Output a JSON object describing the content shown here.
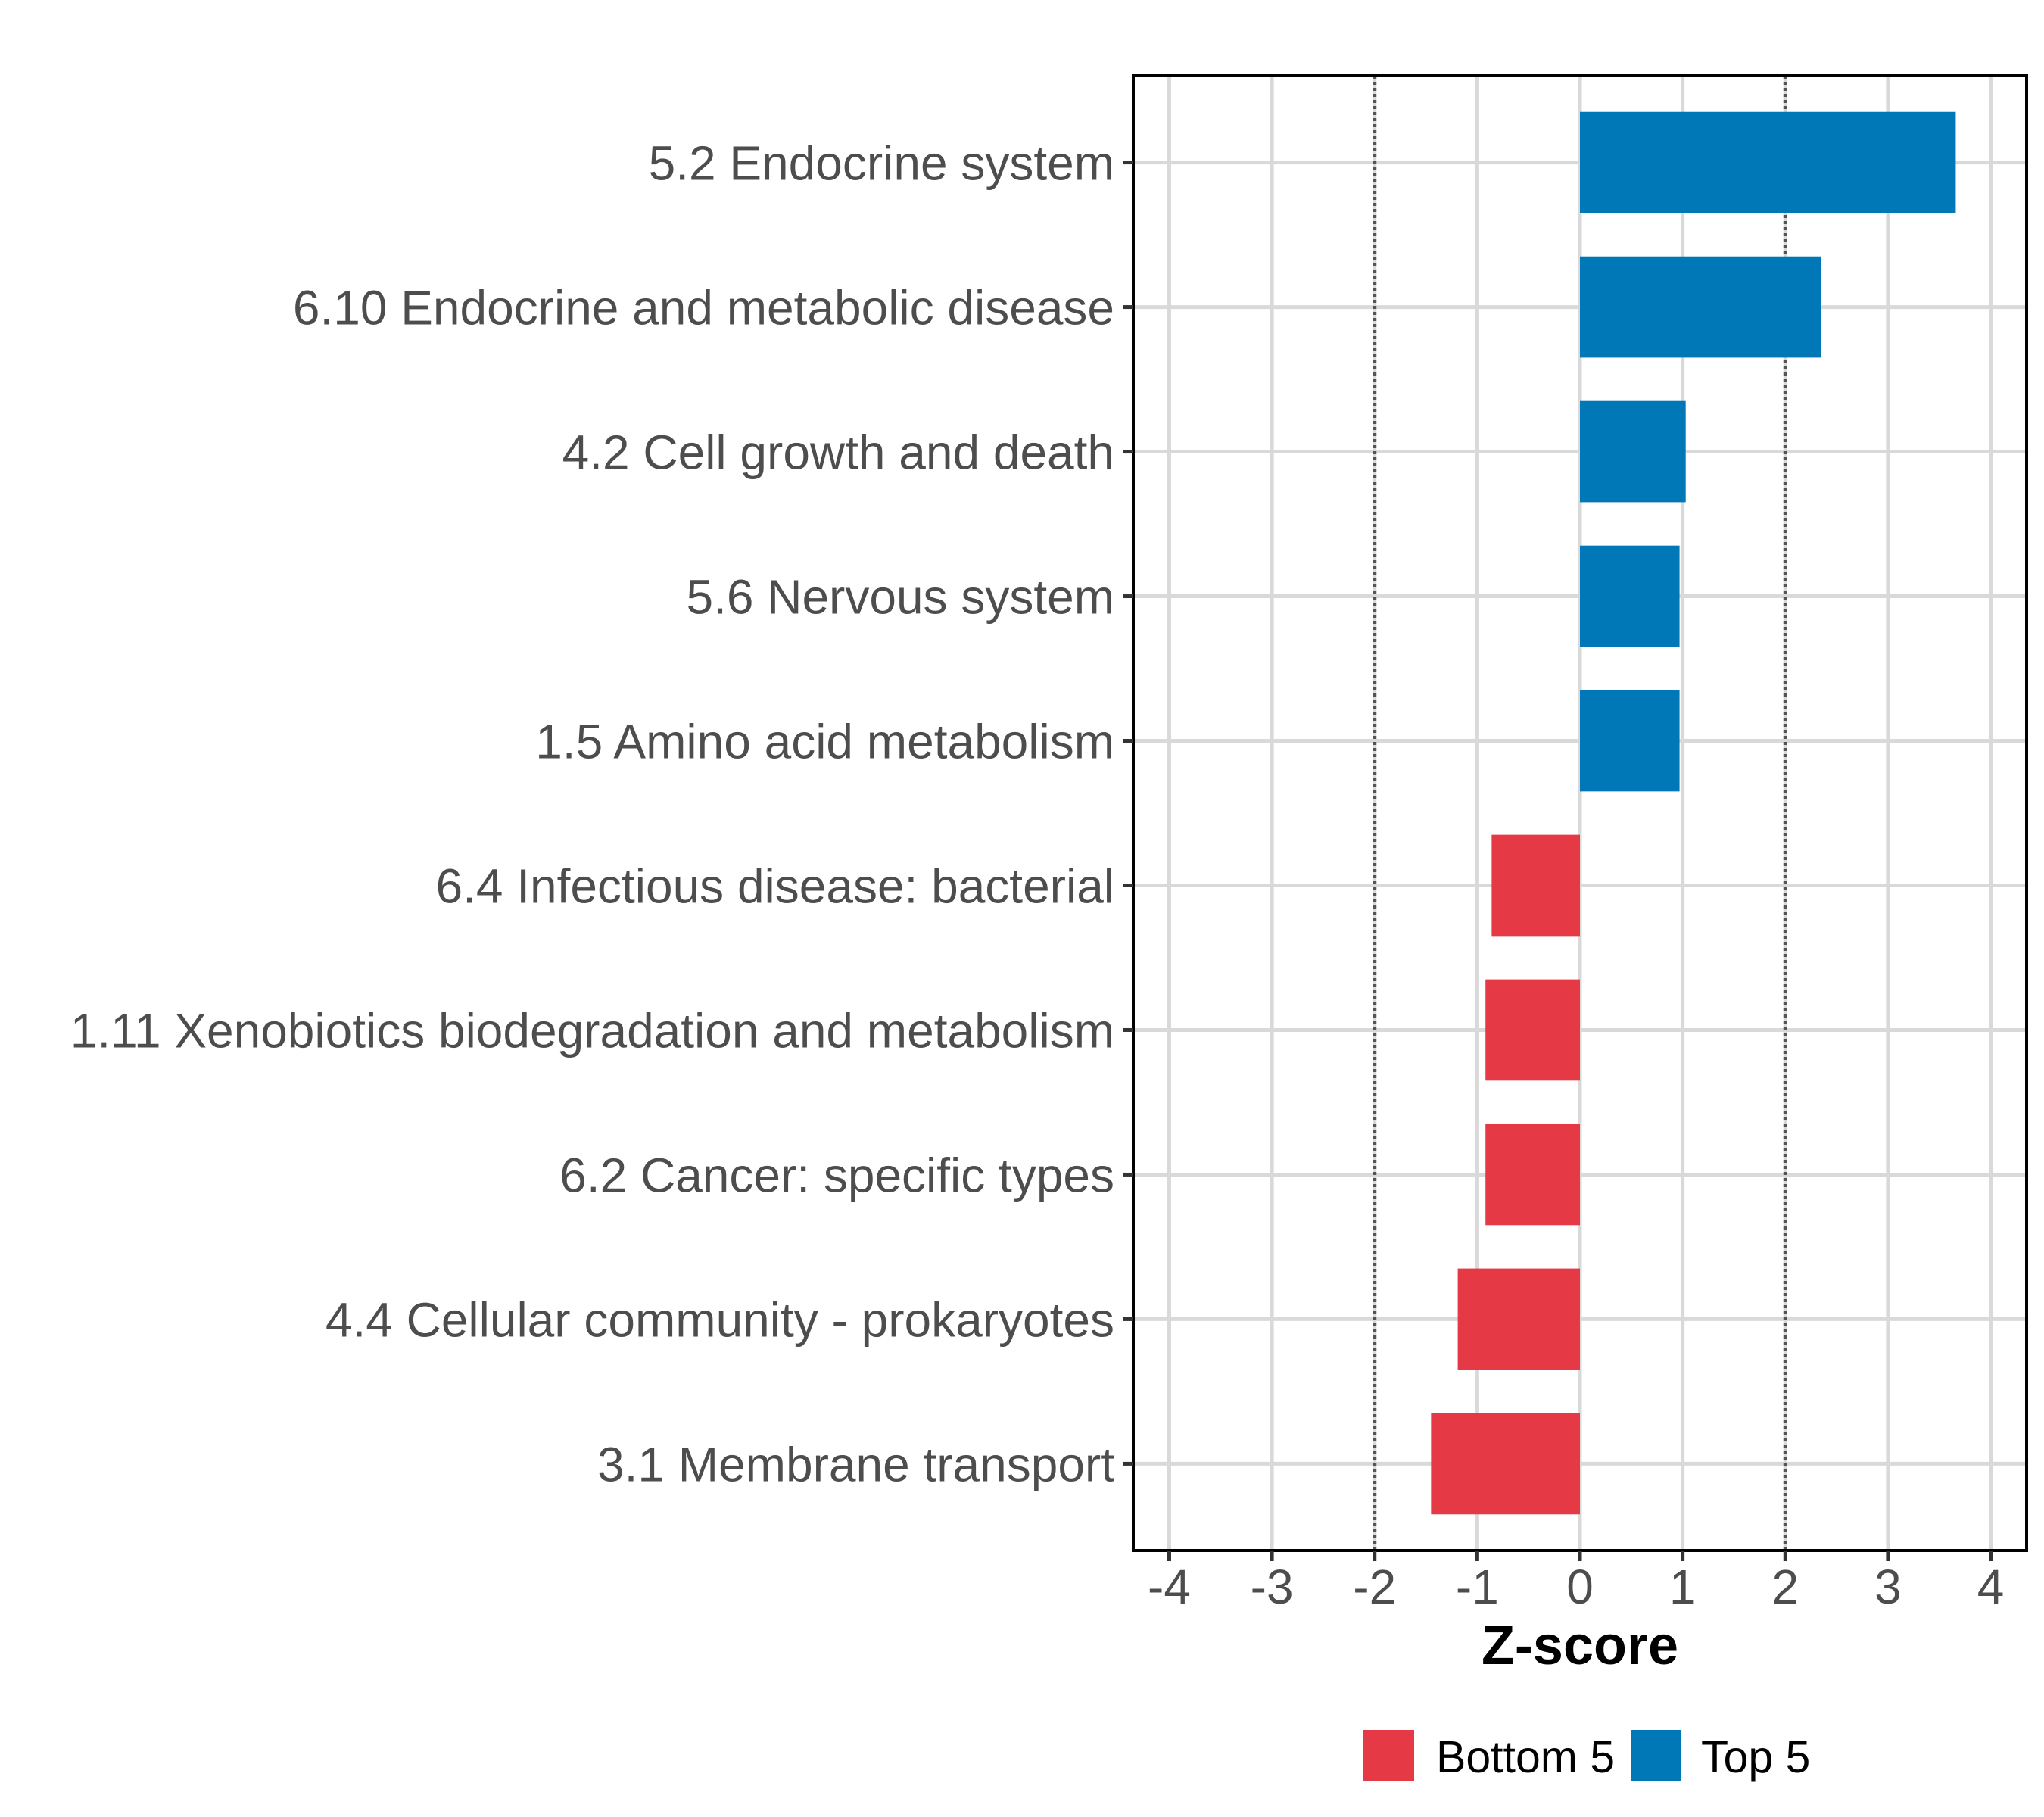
{
  "chart_data": {
    "type": "bar",
    "orientation": "horizontal",
    "title": "",
    "xlabel": "Z-score",
    "ylabel": "",
    "xlim": [
      -4.35,
      4.35
    ],
    "x_ticks": [
      -4,
      -3,
      -2,
      -1,
      0,
      1,
      2,
      3,
      4
    ],
    "x_tick_labels": [
      "-4",
      "-3",
      "-2",
      "-1",
      "0",
      "1",
      "2",
      "3",
      "4"
    ],
    "reference_lines": [
      -2,
      2
    ],
    "grid": true,
    "legend_position": "bottom",
    "categories": [
      "5.2 Endocrine system",
      "6.10 Endocrine and metabolic disease",
      "4.2 Cell growth and death",
      "5.6 Nervous system",
      "1.5 Amino acid metabolism",
      "6.4 Infectious disease: bacterial",
      "1.11 Xenobiotics biodegradation and metabolism",
      "6.2 Cancer: specific types",
      "4.4 Cellular community - prokaryotes",
      "3.1 Membrane transport"
    ],
    "values": [
      3.66,
      2.35,
      1.03,
      0.97,
      0.97,
      -0.86,
      -0.92,
      -0.92,
      -1.19,
      -1.45
    ],
    "groups": [
      "Top 5",
      "Top 5",
      "Top 5",
      "Top 5",
      "Top 5",
      "Bottom 5",
      "Bottom 5",
      "Bottom 5",
      "Bottom 5",
      "Bottom 5"
    ],
    "legend": [
      {
        "label": "Bottom 5",
        "color": "#e63946"
      },
      {
        "label": "Top 5",
        "color": "#0077b6"
      }
    ],
    "colors": {
      "Top 5": "#0077b6",
      "Bottom 5": "#e63946",
      "grid": "#d9d9d9",
      "reference_line": "#555555",
      "axis_text": "#4d4d4d"
    }
  }
}
